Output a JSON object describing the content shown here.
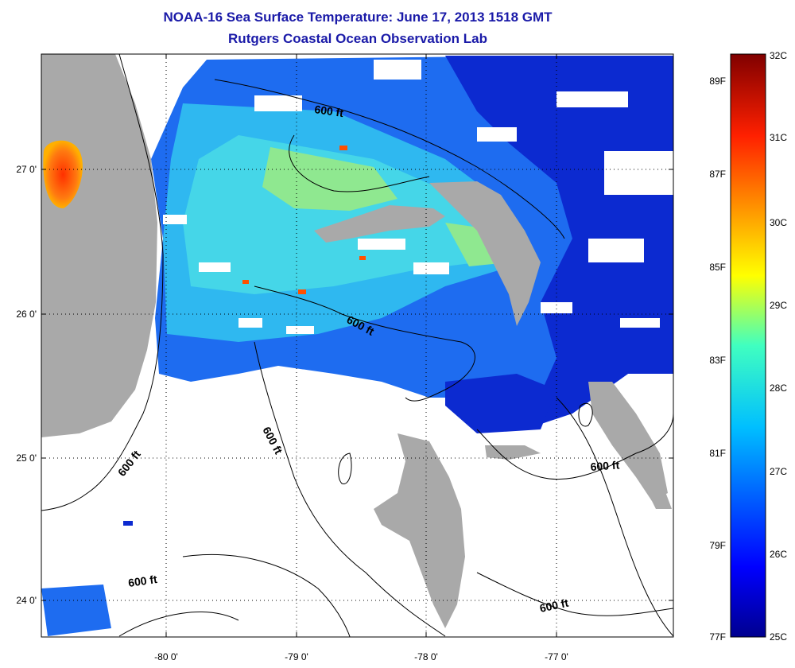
{
  "title": "NOAA-16 Sea Surface Temperature:  June 17, 2013 1518 GMT",
  "subtitle": "Rutgers Coastal Ocean Observation Lab",
  "map": {
    "lat_ticks": [
      "27 0'",
      "26 0'",
      "25 0'",
      "24 0'"
    ],
    "lon_ticks": [
      "-80 0'",
      "-79 0'",
      "-78 0'",
      "-77 0'"
    ],
    "contour_labels": [
      "600 ft",
      "600 ft",
      "600 ft",
      "600 ft",
      "600 ft",
      "600 ft"
    ],
    "colors": {
      "land": "#a9a9a9",
      "no_data": "#ffffff",
      "cold": "#0000b8",
      "warm": "#ff6000"
    }
  },
  "colorbar": {
    "celsius": [
      "32C",
      "31C",
      "30C",
      "29C",
      "28C",
      "27C",
      "26C",
      "25C"
    ],
    "fahrenheit": [
      "89F",
      "87F",
      "85F",
      "83F",
      "81F",
      "79F",
      "77F"
    ]
  }
}
